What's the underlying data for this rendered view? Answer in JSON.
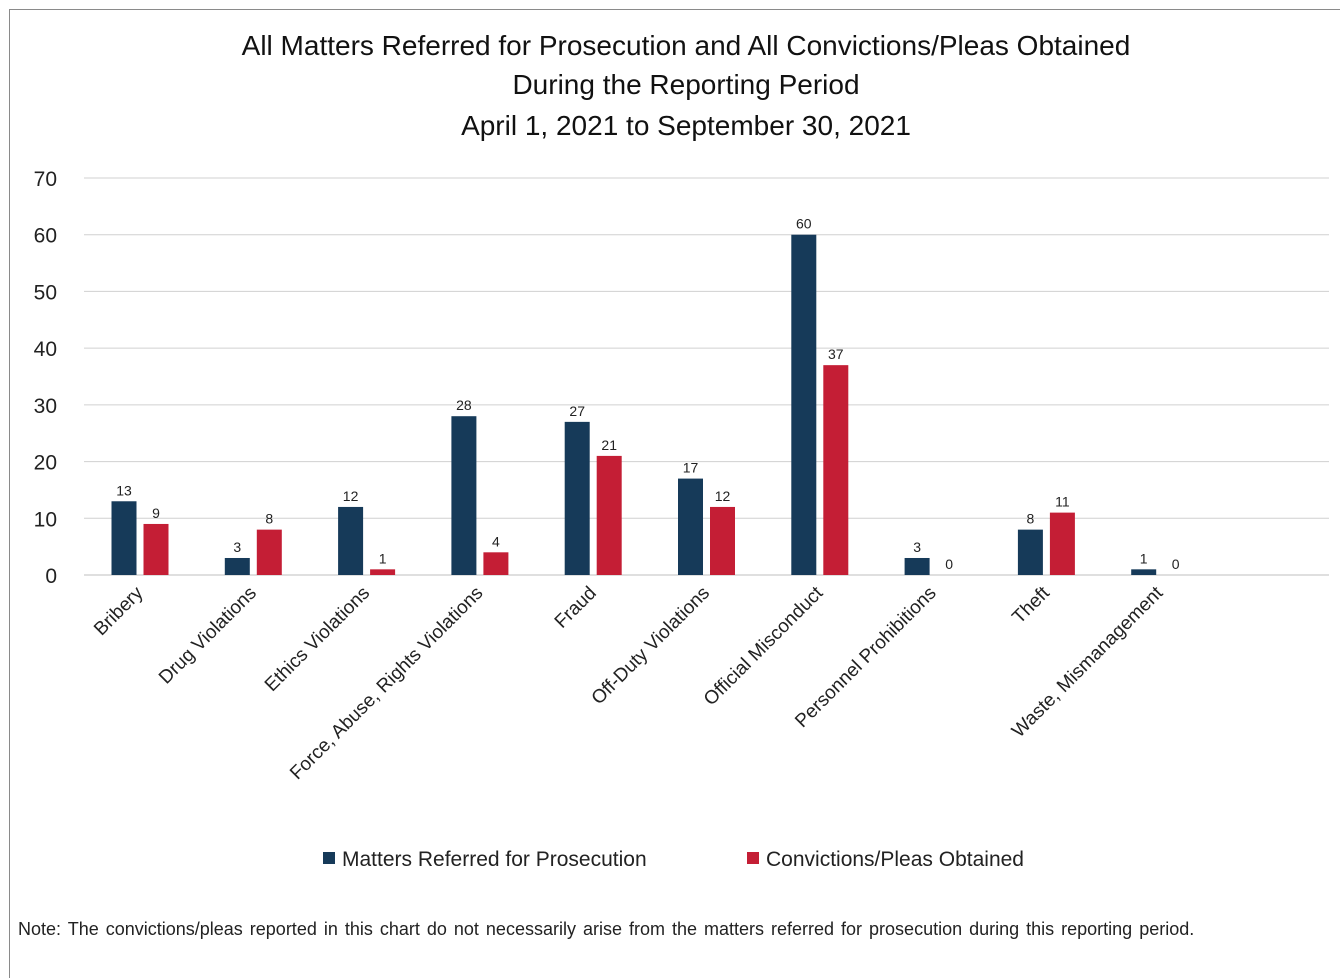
{
  "note": "Note: The convictions/pleas reported in this chart do not necessarily arise from the matters referred for prosecution during this reporting period.",
  "colors": {
    "referred": "#163a59",
    "convictions": "#c41e35",
    "grid": "#d0d0d0",
    "axis": "#bfbfbf"
  },
  "chart_data": {
    "type": "bar",
    "title": [
      "All Matters Referred for Prosecution and All Convictions/Pleas Obtained",
      "During the Reporting Period",
      "April 1, 2021 to September 30, 2021"
    ],
    "xlabel": "",
    "ylabel": "",
    "ylim": [
      0,
      70
    ],
    "yticks": [
      0,
      10,
      20,
      30,
      40,
      50,
      60,
      70
    ],
    "grid": true,
    "legend_position": "bottom",
    "categories": [
      "Bribery",
      "Drug Violations",
      "Ethics Violations",
      "Force, Abuse, Rights Violations",
      "Fraud",
      "Off-Duty Violations",
      "Official Misconduct",
      "Personnel Prohibitions",
      "Theft",
      "Waste, Mismanagement"
    ],
    "series": [
      {
        "name": "Matters Referred for Prosecution",
        "color": "#163a59",
        "values": [
          13,
          3,
          12,
          28,
          27,
          17,
          60,
          3,
          8,
          1
        ]
      },
      {
        "name": "Convictions/Pleas Obtained",
        "color": "#c41e35",
        "values": [
          9,
          8,
          1,
          4,
          21,
          12,
          37,
          0,
          11,
          0
        ]
      }
    ]
  }
}
